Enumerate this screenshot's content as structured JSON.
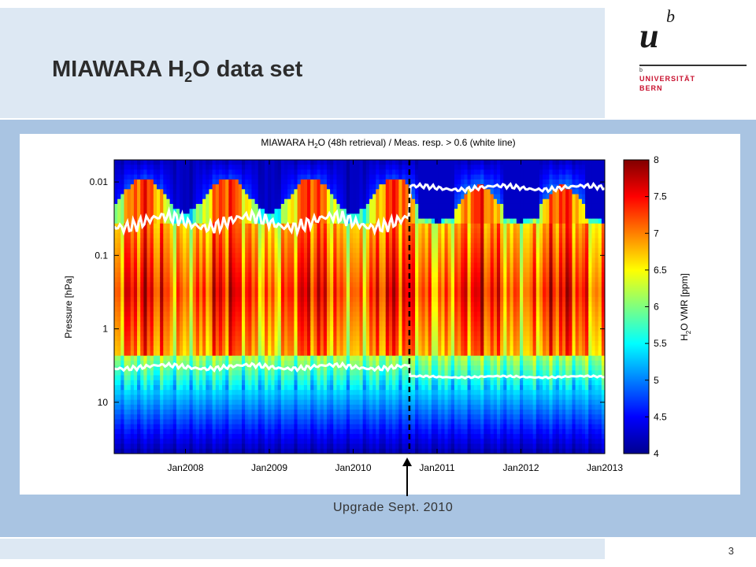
{
  "slide": {
    "title_main": "MIAWARA H",
    "title_sub": "2",
    "title_tail": "O data set",
    "page_number": "3",
    "caption": "Upgrade Sept. 2010"
  },
  "logo": {
    "mark_u": "u",
    "mark_b": "b",
    "tiny": "b",
    "name_line1": "UNIVERSITÄT",
    "name_line2": "BERN"
  },
  "colors": {
    "title_band": "#dde8f3",
    "blue_band": "#a9c4e2",
    "brand_red": "#c8102e"
  },
  "chart_data": {
    "type": "heatmap",
    "title_pre": "MIAWARA H",
    "title_sub": "2",
    "title_post": "O (48h retrieval) / Meas. resp. > 0.6 (white line)",
    "ylabel": "Pressure [hPa]",
    "y_scale": "log",
    "y_reversed": true,
    "ylim": [
      50,
      0.005
    ],
    "y_ticks": [
      0.01,
      0.1,
      1,
      10
    ],
    "y_tick_labels": [
      "0.01",
      "0.1",
      "1",
      "10"
    ],
    "x_ticks": [
      "Jan2008",
      "Jan2009",
      "Jan2010",
      "Jan2011",
      "Jan2012",
      "Jan2013"
    ],
    "xlim": [
      2007.15,
      2013.0
    ],
    "colorbar": {
      "label_pre": "H",
      "label_sub": "2",
      "label_post": "O VMR [ppm]",
      "min": 4,
      "max": 8,
      "ticks": [
        "4",
        "4.5",
        "5",
        "5.5",
        "6",
        "6.5",
        "7",
        "7.5",
        "8"
      ]
    },
    "upgrade_marker_year": 2010.67,
    "white_line_upper_before_hpa": 0.035,
    "white_line_upper_after_hpa": 0.012,
    "white_line_lower_before_hpa": 3.3,
    "white_line_lower_after_hpa": 4.5,
    "grid": false
  }
}
